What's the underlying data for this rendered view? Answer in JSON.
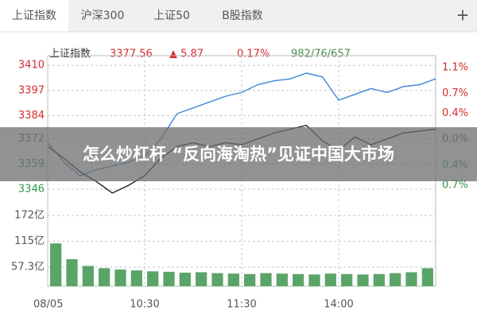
{
  "tabs": [
    "上证指数",
    "沪深300",
    "上证50",
    "B股指数",
    "+"
  ],
  "quote": {
    "name": "上证指数",
    "price": "3377.56",
    "change": "▲ 5.87",
    "percent": "0.17%",
    "breadth": "982/76/657"
  },
  "banner": "怎么炒杠杆 “反向海淘热”见证中国大市场",
  "chart_data": [
    {
      "type": "line",
      "xlim": [
        0,
        240
      ],
      "ylim": [
        3339,
        3415
      ],
      "yticks": [
        3410,
        3397,
        3384,
        3372,
        3359,
        3346
      ],
      "y2lim": [
        -0.97,
        1.28
      ],
      "y2ticks": [
        {
          "value": 1.1,
          "label": "1.1%"
        },
        {
          "value": 0.7,
          "label": "0.7%"
        },
        {
          "value": 0.4,
          "label": "0.4%"
        },
        {
          "value": 0.0,
          "label": "0.0%"
        },
        {
          "value": -0.4,
          "label": "0.4%"
        },
        {
          "value": -0.7,
          "label": "0.7%"
        }
      ],
      "grid": true,
      "x": [
        0,
        10,
        20,
        30,
        40,
        50,
        60,
        70,
        80,
        90,
        100,
        110,
        120,
        130,
        140,
        150,
        160,
        170,
        180,
        190,
        200,
        210,
        220,
        230,
        240
      ],
      "series": [
        {
          "color": "#3b86d8",
          "values": [
            3370,
            3360,
            3353,
            3356,
            3358,
            3360,
            3363,
            3372,
            3385,
            3388,
            3391,
            3394,
            3396,
            3400,
            3402,
            3403,
            3406,
            3404,
            3392,
            3395,
            3398,
            3396,
            3399,
            3400,
            3403
          ]
        },
        {
          "color": "#222222",
          "values": [
            3368,
            3362,
            3355,
            3350,
            3344,
            3348,
            3353,
            3362,
            3368,
            3370,
            3368,
            3370,
            3369,
            3372,
            3375,
            3377,
            3379,
            3371,
            3366,
            3373,
            3369,
            3372,
            3375,
            3376,
            3377
          ]
        }
      ]
    },
    {
      "type": "bar",
      "xlim": [
        0,
        240
      ],
      "ylim": [
        15,
        195
      ],
      "yticks": [
        {
          "value": 172,
          "label": "172亿"
        },
        {
          "value": 115,
          "label": "115亿"
        },
        {
          "value": 57.3,
          "label": "57.3亿"
        }
      ],
      "xticks": [
        {
          "value": 0,
          "label": "08/05"
        },
        {
          "value": 60,
          "label": "10:30"
        },
        {
          "value": 120,
          "label": "11:30"
        },
        {
          "value": 180,
          "label": "14:00"
        }
      ],
      "grid": true,
      "color": "#5aa469",
      "x": [
        5,
        15,
        25,
        35,
        45,
        55,
        65,
        75,
        85,
        95,
        105,
        115,
        125,
        135,
        145,
        155,
        165,
        175,
        185,
        195,
        205,
        215,
        225,
        235
      ],
      "values": [
        110,
        75,
        60,
        55,
        52,
        50,
        48,
        47,
        45,
        46,
        44,
        43,
        42,
        44,
        43,
        42,
        41,
        43,
        42,
        41,
        42,
        44,
        46,
        55
      ]
    }
  ]
}
